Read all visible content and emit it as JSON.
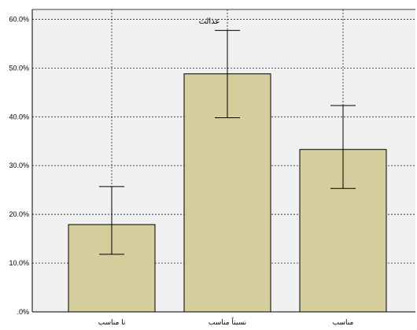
{
  "chart_data": {
    "type": "bar",
    "title": "عدالت",
    "categories": [
      "نا مناسب",
      "نسبتاً مناسب",
      "مناسب"
    ],
    "values": [
      17.9,
      48.8,
      33.3
    ],
    "error_bars": {
      "upper": [
        25.7,
        57.7,
        42.3
      ],
      "lower": [
        11.8,
        39.8,
        25.3
      ]
    },
    "y_ticks": [
      ".0%",
      "10.0%",
      "20.0%",
      "30.0%",
      "40.0%",
      "50.0%",
      "60.0%"
    ],
    "ylim": [
      0,
      62
    ],
    "grid": true,
    "colors": {
      "plot_background": "#f0f0f0",
      "bar_fill": "#d5cd9c",
      "bar_stroke": "#000000",
      "grid": "#000000"
    }
  }
}
